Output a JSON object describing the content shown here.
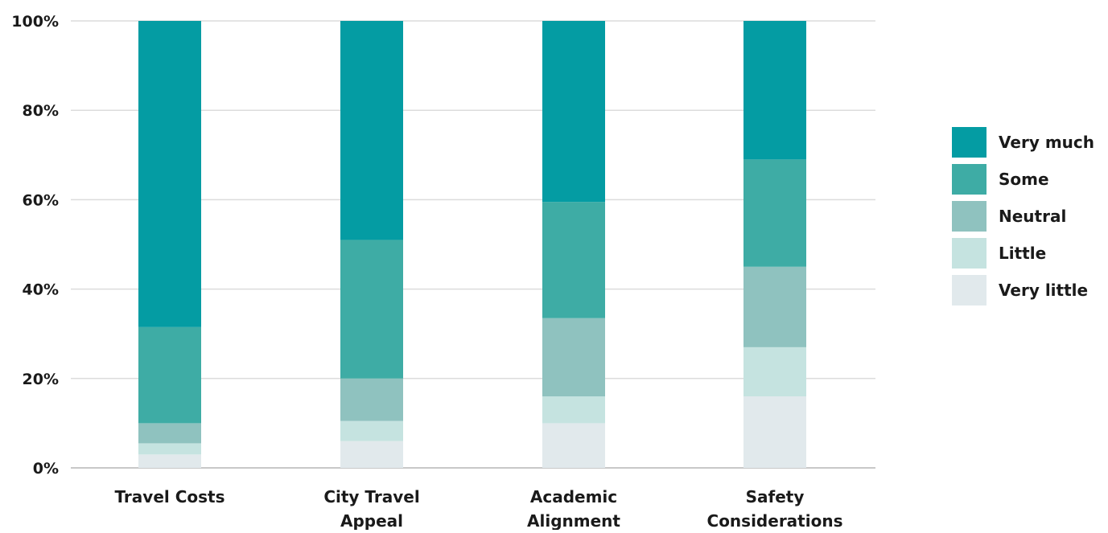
{
  "chart_data": {
    "type": "bar",
    "stacked": true,
    "normalized": true,
    "categories": [
      "Travel Costs",
      "City Travel Appeal",
      "Academic Alignment",
      "Safety Considerations"
    ],
    "series": [
      {
        "name": "Very little",
        "color": "#e1e9ec",
        "values": [
          3,
          6,
          10,
          16
        ]
      },
      {
        "name": "Little",
        "color": "#c5e3e0",
        "values": [
          2.5,
          4.5,
          6,
          11
        ]
      },
      {
        "name": "Neutral",
        "color": "#8fc2bf",
        "values": [
          4.5,
          9.5,
          17.5,
          18
        ]
      },
      {
        "name": "Some",
        "color": "#3eaca5",
        "values": [
          21.5,
          31,
          26,
          24
        ]
      },
      {
        "name": "Very much",
        "color": "#049ca3",
        "values": [
          68.5,
          49,
          40.5,
          31
        ]
      }
    ],
    "ylim": [
      0,
      100
    ],
    "yticks": [
      "0%",
      "20%",
      "40%",
      "60%",
      "80%",
      "100%"
    ],
    "grid": true,
    "legend_position": "right",
    "legend_order": [
      "Very much",
      "Some",
      "Neutral",
      "Little",
      "Very little"
    ],
    "title": "",
    "xlabel": "",
    "ylabel": ""
  }
}
